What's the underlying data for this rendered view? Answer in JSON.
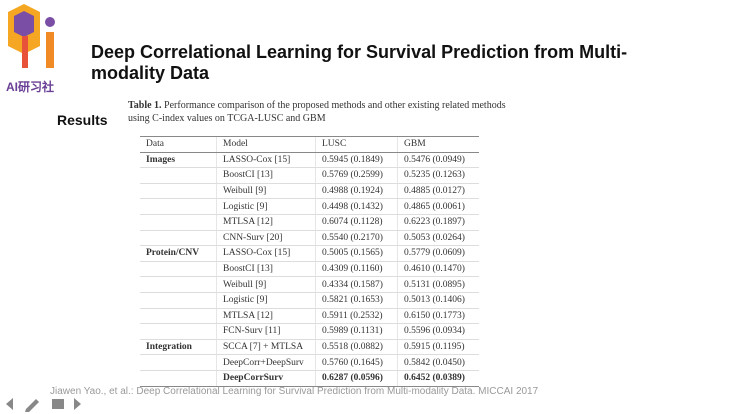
{
  "logo": {
    "text": "AI研习社"
  },
  "title": "Deep Correlational Learning for Survival Prediction from Multi-modality Data",
  "section": "Results",
  "table": {
    "caption_label": "Table 1.",
    "caption": "Performance comparison of the proposed methods and other existing related methods using C-index values on TCGA-LUSC and GBM",
    "header": [
      "Data",
      "Model",
      "LUSC",
      "GBM"
    ],
    "groups": [
      {
        "name": "Images",
        "rows": [
          [
            "LASSO-Cox [15]",
            "0.5945 (0.1849)",
            "0.5476 (0.0949)"
          ],
          [
            "BoostCI [13]",
            "0.5769 (0.2599)",
            "0.5235 (0.1263)"
          ],
          [
            "Weibull [9]",
            "0.4988 (0.1924)",
            "0.4885 (0.0127)"
          ],
          [
            "Logistic [9]",
            "0.4498 (0.1432)",
            "0.4865 (0.0061)"
          ],
          [
            "MTLSA [12]",
            "0.6074 (0.1128)",
            "0.6223 (0.1897)"
          ],
          [
            "CNN-Surv [20]",
            "0.5540 (0.2170)",
            "0.5053 (0.0264)"
          ]
        ]
      },
      {
        "name": "Protein/CNV",
        "rows": [
          [
            "LASSO-Cox [15]",
            "0.5005 (0.1565)",
            "0.5779 (0.0609)"
          ],
          [
            "BoostCI [13]",
            "0.4309 (0.1160)",
            "0.4610 (0.1470)"
          ],
          [
            "Weibull [9]",
            "0.4334 (0.1587)",
            "0.5131 (0.0895)"
          ],
          [
            "Logistic [9]",
            "0.5821 (0.1653)",
            "0.5013 (0.1406)"
          ],
          [
            "MTLSA [12]",
            "0.5911 (0.2532)",
            "0.6150 (0.1773)"
          ],
          [
            "FCN-Surv [11]",
            "0.5989 (0.1131)",
            "0.5596 (0.0934)"
          ]
        ]
      },
      {
        "name": "Integration",
        "rows": [
          [
            "SCCA [7] + MTLSA",
            "0.5518 (0.0882)",
            "0.5915 (0.1195)"
          ],
          [
            "DeepCorr+DeepSurv",
            "0.5760 (0.1645)",
            "0.5842 (0.0450)"
          ],
          [
            "DeepCorrSurv",
            "0.6287 (0.0596)",
            "0.6452 (0.0389)"
          ]
        ]
      }
    ]
  },
  "footer": "Jiawen Yao., et al.: Deep Correlational Learning for Survival Prediction from Multi-modality Data. MICCAI 2017"
}
